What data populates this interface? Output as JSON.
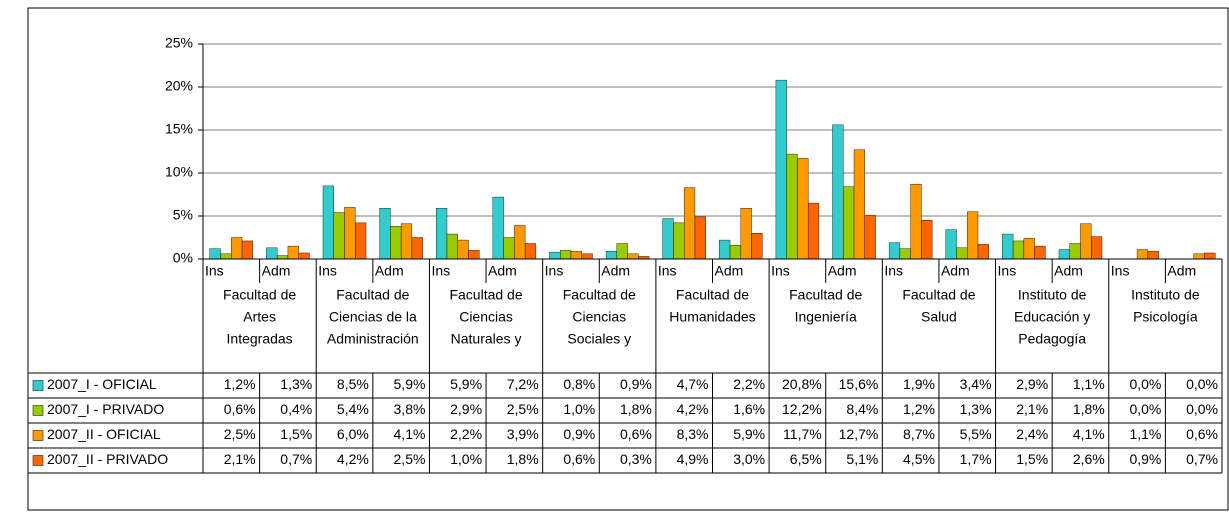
{
  "chart_data": {
    "type": "bar",
    "categories": [
      "Ins",
      "Adm",
      "Ins",
      "Adm",
      "Ins",
      "Adm",
      "Ins",
      "Adm",
      "Ins",
      "Adm",
      "Ins",
      "Adm",
      "Ins",
      "Adm",
      "Ins",
      "Adm",
      "Ins",
      "Adm"
    ],
    "groups": [
      [
        "Facultad de",
        "Artes",
        "Integradas"
      ],
      [
        "Facultad de",
        "Ciencias de la",
        "Administración"
      ],
      [
        "Facultad de",
        "Ciencias",
        "Naturales y"
      ],
      [
        "Facultad de",
        "Ciencias",
        "Sociales y"
      ],
      [
        "Facultad de",
        "Humanidades"
      ],
      [
        "Facultad de",
        "Ingeniería"
      ],
      [
        "Facultad de",
        "Salud"
      ],
      [
        "Instituto de",
        "Educación y",
        "Pedagogía"
      ],
      [
        "Instituto de",
        "Psicología"
      ]
    ],
    "series": [
      {
        "name": "2007_I - OFICIAL",
        "color": "#33cccc",
        "values": [
          1.2,
          1.3,
          8.5,
          5.9,
          5.9,
          7.2,
          0.8,
          0.9,
          4.7,
          2.2,
          20.8,
          15.6,
          1.9,
          3.4,
          2.9,
          1.1,
          0.0,
          0.0
        ],
        "value_labels": [
          "1,2%",
          "1,3%",
          "8,5%",
          "5,9%",
          "5,9%",
          "7,2%",
          "0,8%",
          "0,9%",
          "4,7%",
          "2,2%",
          "20,8%",
          "15,6%",
          "1,9%",
          "3,4%",
          "2,9%",
          "1,1%",
          "0,0%",
          "0,0%"
        ]
      },
      {
        "name": "2007_I - PRIVADO",
        "color": "#99cc00",
        "values": [
          0.6,
          0.4,
          5.4,
          3.8,
          2.9,
          2.5,
          1.0,
          1.8,
          4.2,
          1.6,
          12.2,
          8.4,
          1.2,
          1.3,
          2.1,
          1.8,
          0.0,
          0.0
        ],
        "value_labels": [
          "0,6%",
          "0,4%",
          "5,4%",
          "3,8%",
          "2,9%",
          "2,5%",
          "1,0%",
          "1,8%",
          "4,2%",
          "1,6%",
          "12,2%",
          "8,4%",
          "1,2%",
          "1,3%",
          "2,1%",
          "1,8%",
          "0,0%",
          "0,0%"
        ]
      },
      {
        "name": "2007_II - OFICIAL",
        "color": "#ff9900",
        "values": [
          2.5,
          1.5,
          6.0,
          4.1,
          2.2,
          3.9,
          0.9,
          0.6,
          8.3,
          5.9,
          11.7,
          12.7,
          8.7,
          5.5,
          2.4,
          4.1,
          1.1,
          0.6
        ],
        "value_labels": [
          "2,5%",
          "1,5%",
          "6,0%",
          "4,1%",
          "2,2%",
          "3,9%",
          "0,9%",
          "0,6%",
          "8,3%",
          "5,9%",
          "11,7%",
          "12,7%",
          "8,7%",
          "5,5%",
          "2,4%",
          "4,1%",
          "1,1%",
          "0,6%"
        ]
      },
      {
        "name": "2007_II - PRIVADO",
        "color": "#ff6600",
        "values": [
          2.1,
          0.7,
          4.2,
          2.5,
          1.0,
          1.8,
          0.6,
          0.3,
          4.9,
          3.0,
          6.5,
          5.1,
          4.5,
          1.7,
          1.5,
          2.6,
          0.9,
          0.7
        ],
        "value_labels": [
          "2,1%",
          "0,7%",
          "4,2%",
          "2,5%",
          "1,0%",
          "1,8%",
          "0,6%",
          "0,3%",
          "4,9%",
          "3,0%",
          "6,5%",
          "5,1%",
          "4,5%",
          "1,7%",
          "1,5%",
          "2,6%",
          "0,9%",
          "0,7%"
        ]
      }
    ],
    "ylim": [
      0,
      25
    ],
    "yticks": [
      {
        "value": 0,
        "label": "0%"
      },
      {
        "value": 5,
        "label": "5%"
      },
      {
        "value": 10,
        "label": "10%"
      },
      {
        "value": 15,
        "label": "15%"
      },
      {
        "value": 20,
        "label": "20%"
      },
      {
        "value": 25,
        "label": "25%"
      }
    ],
    "grid": true
  }
}
